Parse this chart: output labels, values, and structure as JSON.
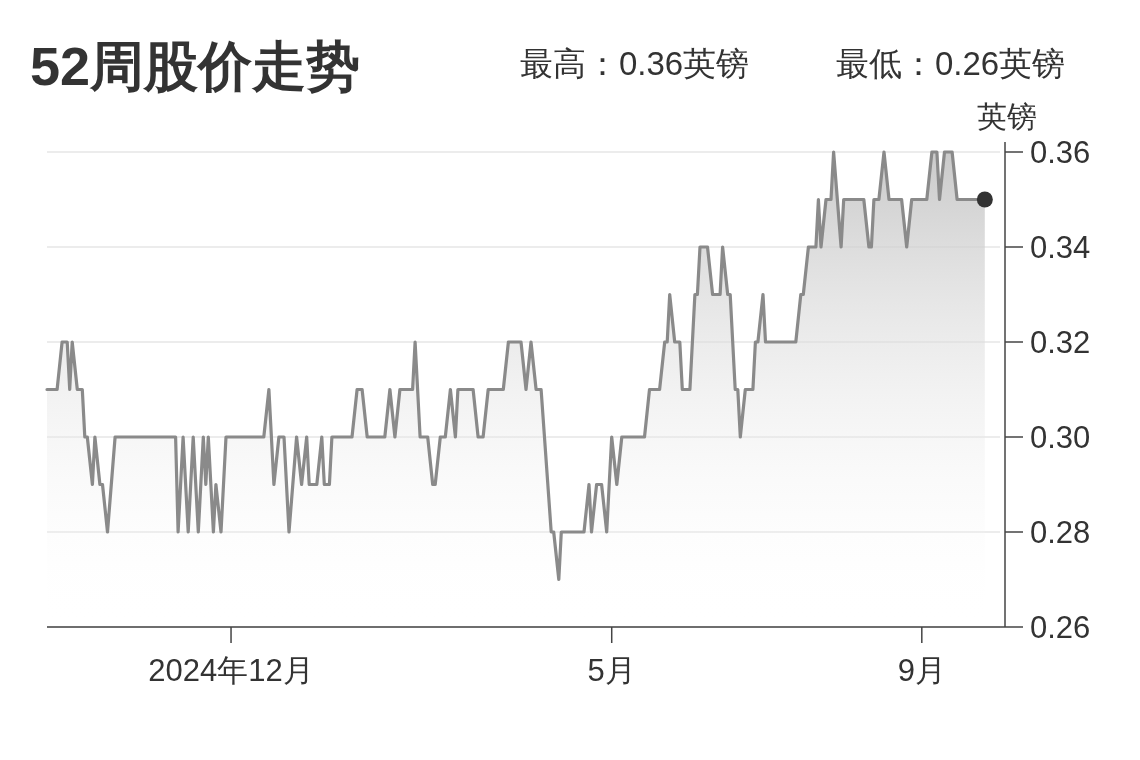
{
  "chart_data": {
    "type": "area",
    "title": "52周股价走势",
    "annotations": [
      "最高：0.36英镑",
      "最低：0.26英镑"
    ],
    "ylabel": "英镑",
    "grid": "y",
    "xlim": [
      "2024-09-19",
      "2025-10-04"
    ],
    "xticks": [
      {
        "value": "2024-12-01",
        "label": "2024年12月"
      },
      {
        "value": "2025-05-01",
        "label": "5月"
      },
      {
        "value": "2025-09-01",
        "label": "9月"
      }
    ],
    "ylim": [
      0.26,
      0.36
    ],
    "yticks": [
      {
        "value": 0.26,
        "label": "0.26"
      },
      {
        "value": 0.28,
        "label": "0.28"
      },
      {
        "value": 0.3,
        "label": "0.30"
      },
      {
        "value": 0.32,
        "label": "0.32"
      },
      {
        "value": 0.34,
        "label": "0.34"
      },
      {
        "value": 0.36,
        "label": "0.36"
      }
    ],
    "series": [
      {
        "color": "#8a8a8a",
        "x": [
          "2024-09-19",
          "2024-09-23",
          "2024-09-25",
          "2024-09-27",
          "2024-09-28",
          "2024-09-29",
          "2024-10-01",
          "2024-10-03",
          "2024-10-04",
          "2024-10-05",
          "2024-10-07",
          "2024-10-08",
          "2024-10-10",
          "2024-10-11",
          "2024-10-13",
          "2024-10-16",
          "2024-11-09",
          "2024-11-10",
          "2024-11-12",
          "2024-11-14",
          "2024-11-16",
          "2024-11-18",
          "2024-11-20",
          "2024-11-21",
          "2024-11-22",
          "2024-11-24",
          "2024-11-25",
          "2024-11-27",
          "2024-11-29",
          "2024-12-14",
          "2024-12-16",
          "2024-12-18",
          "2024-12-20",
          "2024-12-22",
          "2024-12-24",
          "2024-12-27",
          "2024-12-29",
          "2024-12-31",
          "2025-01-01",
          "2025-01-04",
          "2025-01-06",
          "2025-01-07",
          "2025-01-09",
          "2025-01-10",
          "2025-01-18",
          "2025-01-20",
          "2025-01-22",
          "2025-01-24",
          "2025-01-31",
          "2025-02-02",
          "2025-02-04",
          "2025-02-06",
          "2025-02-11",
          "2025-02-12",
          "2025-02-14",
          "2025-02-17",
          "2025-02-19",
          "2025-02-20",
          "2025-02-22",
          "2025-02-24",
          "2025-02-26",
          "2025-02-28",
          "2025-03-01",
          "2025-03-07",
          "2025-03-09",
          "2025-03-11",
          "2025-03-13",
          "2025-03-19",
          "2025-03-21",
          "2025-03-26",
          "2025-03-28",
          "2025-03-30",
          "2025-04-01",
          "2025-04-03",
          "2025-04-07",
          "2025-04-08",
          "2025-04-10",
          "2025-04-11",
          "2025-04-20",
          "2025-04-22",
          "2025-04-23",
          "2025-04-25",
          "2025-04-27",
          "2025-04-29",
          "2025-05-01",
          "2025-05-03",
          "2025-05-05",
          "2025-05-14",
          "2025-05-16",
          "2025-05-20",
          "2025-05-22",
          "2025-05-23",
          "2025-05-24",
          "2025-05-26",
          "2025-05-28",
          "2025-05-29",
          "2025-06-01",
          "2025-06-03",
          "2025-06-04",
          "2025-06-05",
          "2025-06-08",
          "2025-06-10",
          "2025-06-13",
          "2025-06-14",
          "2025-06-16",
          "2025-06-17",
          "2025-06-19",
          "2025-06-20",
          "2025-06-21",
          "2025-06-23",
          "2025-06-26",
          "2025-06-27",
          "2025-06-28",
          "2025-06-30",
          "2025-07-01",
          "2025-07-13",
          "2025-07-15",
          "2025-07-16",
          "2025-07-18",
          "2025-07-20",
          "2025-07-21",
          "2025-07-22",
          "2025-07-23",
          "2025-07-25",
          "2025-07-27",
          "2025-07-28",
          "2025-07-31",
          "2025-08-01",
          "2025-08-09",
          "2025-08-11",
          "2025-08-12",
          "2025-08-13",
          "2025-08-15",
          "2025-08-17",
          "2025-08-19",
          "2025-08-24",
          "2025-08-26",
          "2025-08-28",
          "2025-09-03",
          "2025-09-05",
          "2025-09-07",
          "2025-09-08",
          "2025-09-10",
          "2025-09-13",
          "2025-09-15",
          "2025-09-26"
        ],
        "values": [
          0.31,
          0.31,
          0.32,
          0.32,
          0.31,
          0.32,
          0.31,
          0.31,
          0.3,
          0.3,
          0.29,
          0.3,
          0.29,
          0.29,
          0.28,
          0.3,
          0.3,
          0.28,
          0.3,
          0.28,
          0.3,
          0.28,
          0.3,
          0.29,
          0.3,
          0.28,
          0.29,
          0.28,
          0.3,
          0.3,
          0.31,
          0.29,
          0.3,
          0.3,
          0.28,
          0.3,
          0.29,
          0.3,
          0.29,
          0.29,
          0.3,
          0.29,
          0.29,
          0.3,
          0.3,
          0.31,
          0.31,
          0.3,
          0.3,
          0.31,
          0.3,
          0.31,
          0.31,
          0.32,
          0.3,
          0.3,
          0.29,
          0.29,
          0.3,
          0.3,
          0.31,
          0.3,
          0.31,
          0.31,
          0.3,
          0.3,
          0.31,
          0.31,
          0.32,
          0.32,
          0.31,
          0.32,
          0.31,
          0.31,
          0.28,
          0.28,
          0.27,
          0.28,
          0.28,
          0.29,
          0.28,
          0.29,
          0.29,
          0.28,
          0.3,
          0.29,
          0.3,
          0.3,
          0.31,
          0.31,
          0.32,
          0.32,
          0.33,
          0.32,
          0.32,
          0.31,
          0.31,
          0.33,
          0.33,
          0.34,
          0.34,
          0.33,
          0.33,
          0.34,
          0.33,
          0.33,
          0.31,
          0.31,
          0.3,
          0.31,
          0.31,
          0.32,
          0.32,
          0.33,
          0.32,
          0.32,
          0.33,
          0.33,
          0.34,
          0.34,
          0.34,
          0.35,
          0.34,
          0.35,
          0.35,
          0.36,
          0.34,
          0.35,
          0.35,
          0.34,
          0.34,
          0.35,
          0.35,
          0.36,
          0.35,
          0.35,
          0.34,
          0.35,
          0.35,
          0.36,
          0.36,
          0.35,
          0.36,
          0.36,
          0.35,
          0.35
        ]
      },
      {
        "type": "scatter",
        "color": "#333333",
        "x": [
          "2025-09-26"
        ],
        "values": [
          0.35
        ]
      }
    ]
  }
}
